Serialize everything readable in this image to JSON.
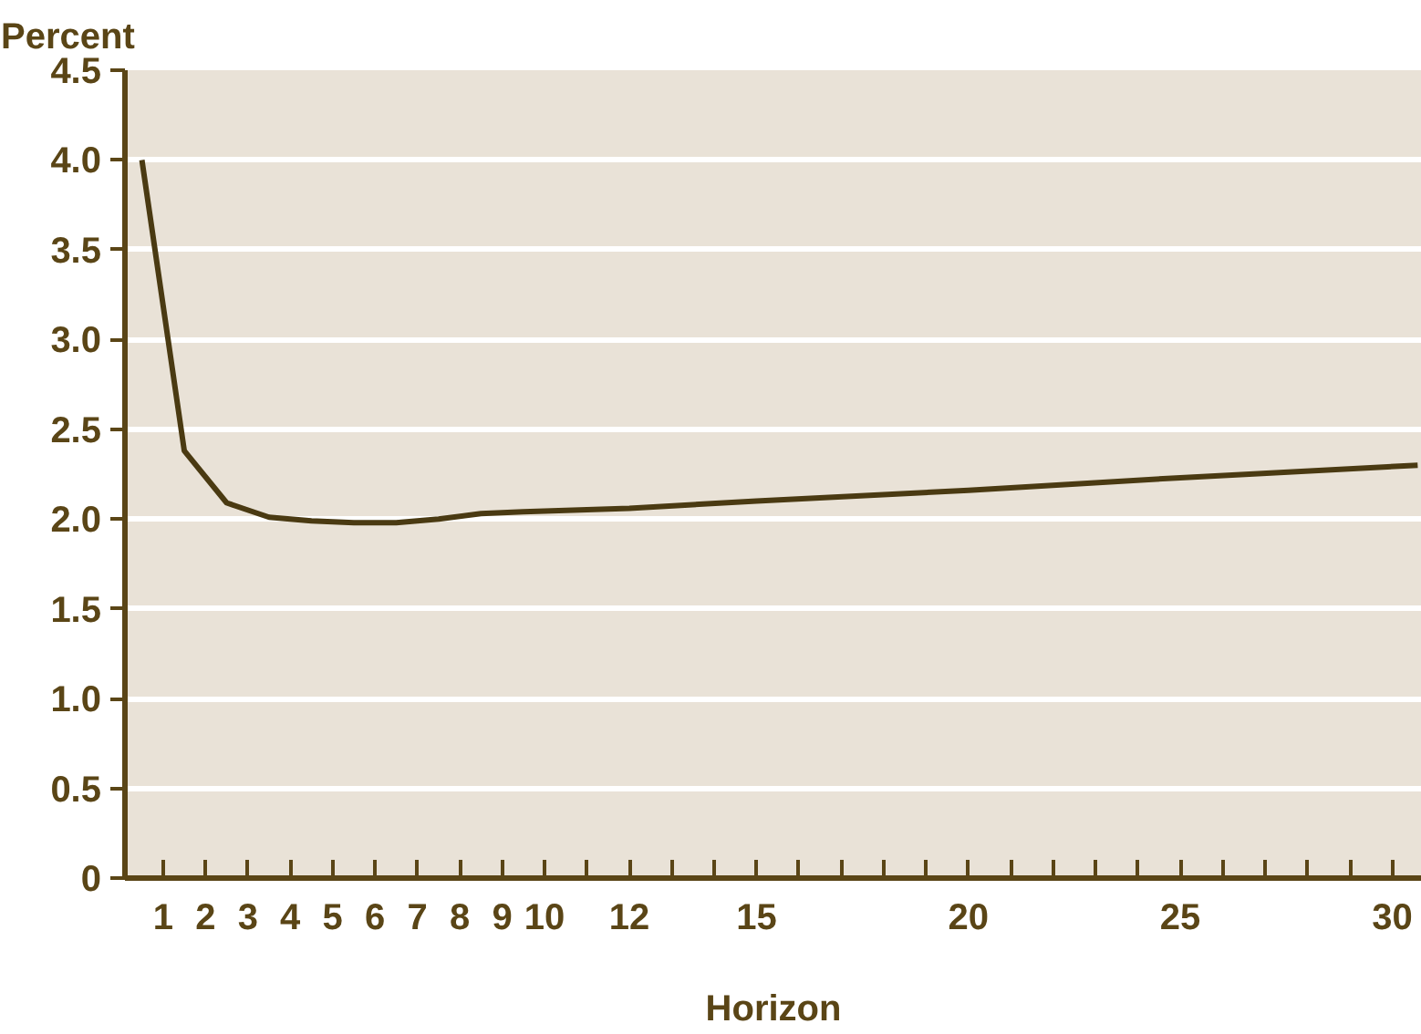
{
  "chart_data": {
    "type": "line",
    "ylabel": "Percent",
    "xlabel": "Horizon",
    "x": [
      0.5,
      1.5,
      2.5,
      3.5,
      4.5,
      5.5,
      6.5,
      7.5,
      8.5,
      9.5,
      12,
      15,
      20,
      25,
      30.6
    ],
    "series": [
      {
        "color": "#4a3a12",
        "values": [
          4.0,
          2.38,
          2.09,
          2.01,
          1.99,
          1.98,
          1.98,
          2.0,
          2.03,
          2.04,
          2.06,
          2.1,
          2.16,
          2.23,
          2.3
        ]
      }
    ],
    "xlim": [
      0.1,
      30.7
    ],
    "ylim": [
      0,
      4.5
    ],
    "xticks": [
      1,
      2,
      3,
      4,
      5,
      6,
      7,
      8,
      9,
      10,
      {
        "value": 11,
        "label": null
      },
      12,
      {
        "value": 13,
        "label": null
      },
      {
        "value": 14,
        "label": null
      },
      15,
      {
        "value": 16,
        "label": null
      },
      {
        "value": 17,
        "label": null
      },
      {
        "value": 18,
        "label": null
      },
      {
        "value": 19,
        "label": null
      },
      20,
      {
        "value": 21,
        "label": null
      },
      {
        "value": 22,
        "label": null
      },
      {
        "value": 23,
        "label": null
      },
      {
        "value": 24,
        "label": null
      },
      25,
      {
        "value": 26,
        "label": null
      },
      {
        "value": 27,
        "label": null
      },
      {
        "value": 28,
        "label": null
      },
      {
        "value": 29,
        "label": null
      },
      30
    ],
    "yticks": [
      {
        "value": 0,
        "label": "0"
      },
      {
        "value": 0.5,
        "label": "0.5"
      },
      {
        "value": 1,
        "label": "1.0"
      },
      {
        "value": 1.5,
        "label": "1.5"
      },
      {
        "value": 2,
        "label": "2.0"
      },
      {
        "value": 2.5,
        "label": "2.5"
      },
      {
        "value": 3,
        "label": "3.0"
      },
      {
        "value": 3.5,
        "label": "3.5"
      },
      {
        "value": 4,
        "label": "4.0"
      },
      {
        "value": 4.5,
        "label": "4.5"
      }
    ],
    "grid": "y",
    "marker": "none",
    "line_style": "solid"
  }
}
